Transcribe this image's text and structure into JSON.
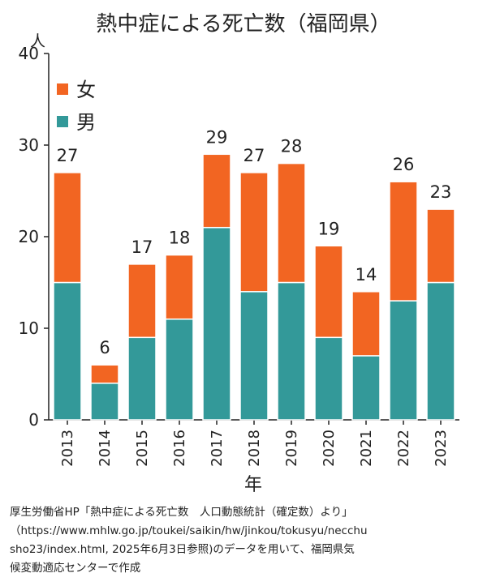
{
  "chart_data": {
    "type": "bar",
    "stacked": true,
    "title": "熱中症による死亡数（福岡県）",
    "unit_label": "人",
    "xlabel": "年",
    "ylim": [
      0,
      40
    ],
    "yticks": [
      "0",
      "10",
      "20",
      "30",
      "40"
    ],
    "categories": [
      "2013",
      "2014",
      "2015",
      "2016",
      "2017",
      "2018",
      "2019",
      "2020",
      "2021",
      "2022",
      "2023"
    ],
    "series": [
      {
        "name": "男",
        "color": "#339999",
        "values": [
          15,
          4,
          9,
          11,
          21,
          14,
          15,
          9,
          7,
          13,
          15
        ]
      },
      {
        "name": "女",
        "color": "#f26522",
        "values": [
          12,
          2,
          8,
          7,
          8,
          13,
          13,
          10,
          7,
          13,
          8
        ]
      }
    ],
    "totals": [
      "27",
      "6",
      "17",
      "18",
      "29",
      "27",
      "28",
      "19",
      "14",
      "26",
      "23"
    ],
    "legend_placement": "top-left",
    "grid": false
  },
  "source_note": [
    "厚生労働省HP「熱中症による死亡数　人口動態統計（確定数）より」",
    "（https://www.mhlw.go.jp/toukei/saikin/hw/jinkou/tokusyu/necchu",
    "sho23/index.html, 2025年6月3日参照)のデータを用いて、福岡県気",
    "候変動適応センターで作成"
  ]
}
